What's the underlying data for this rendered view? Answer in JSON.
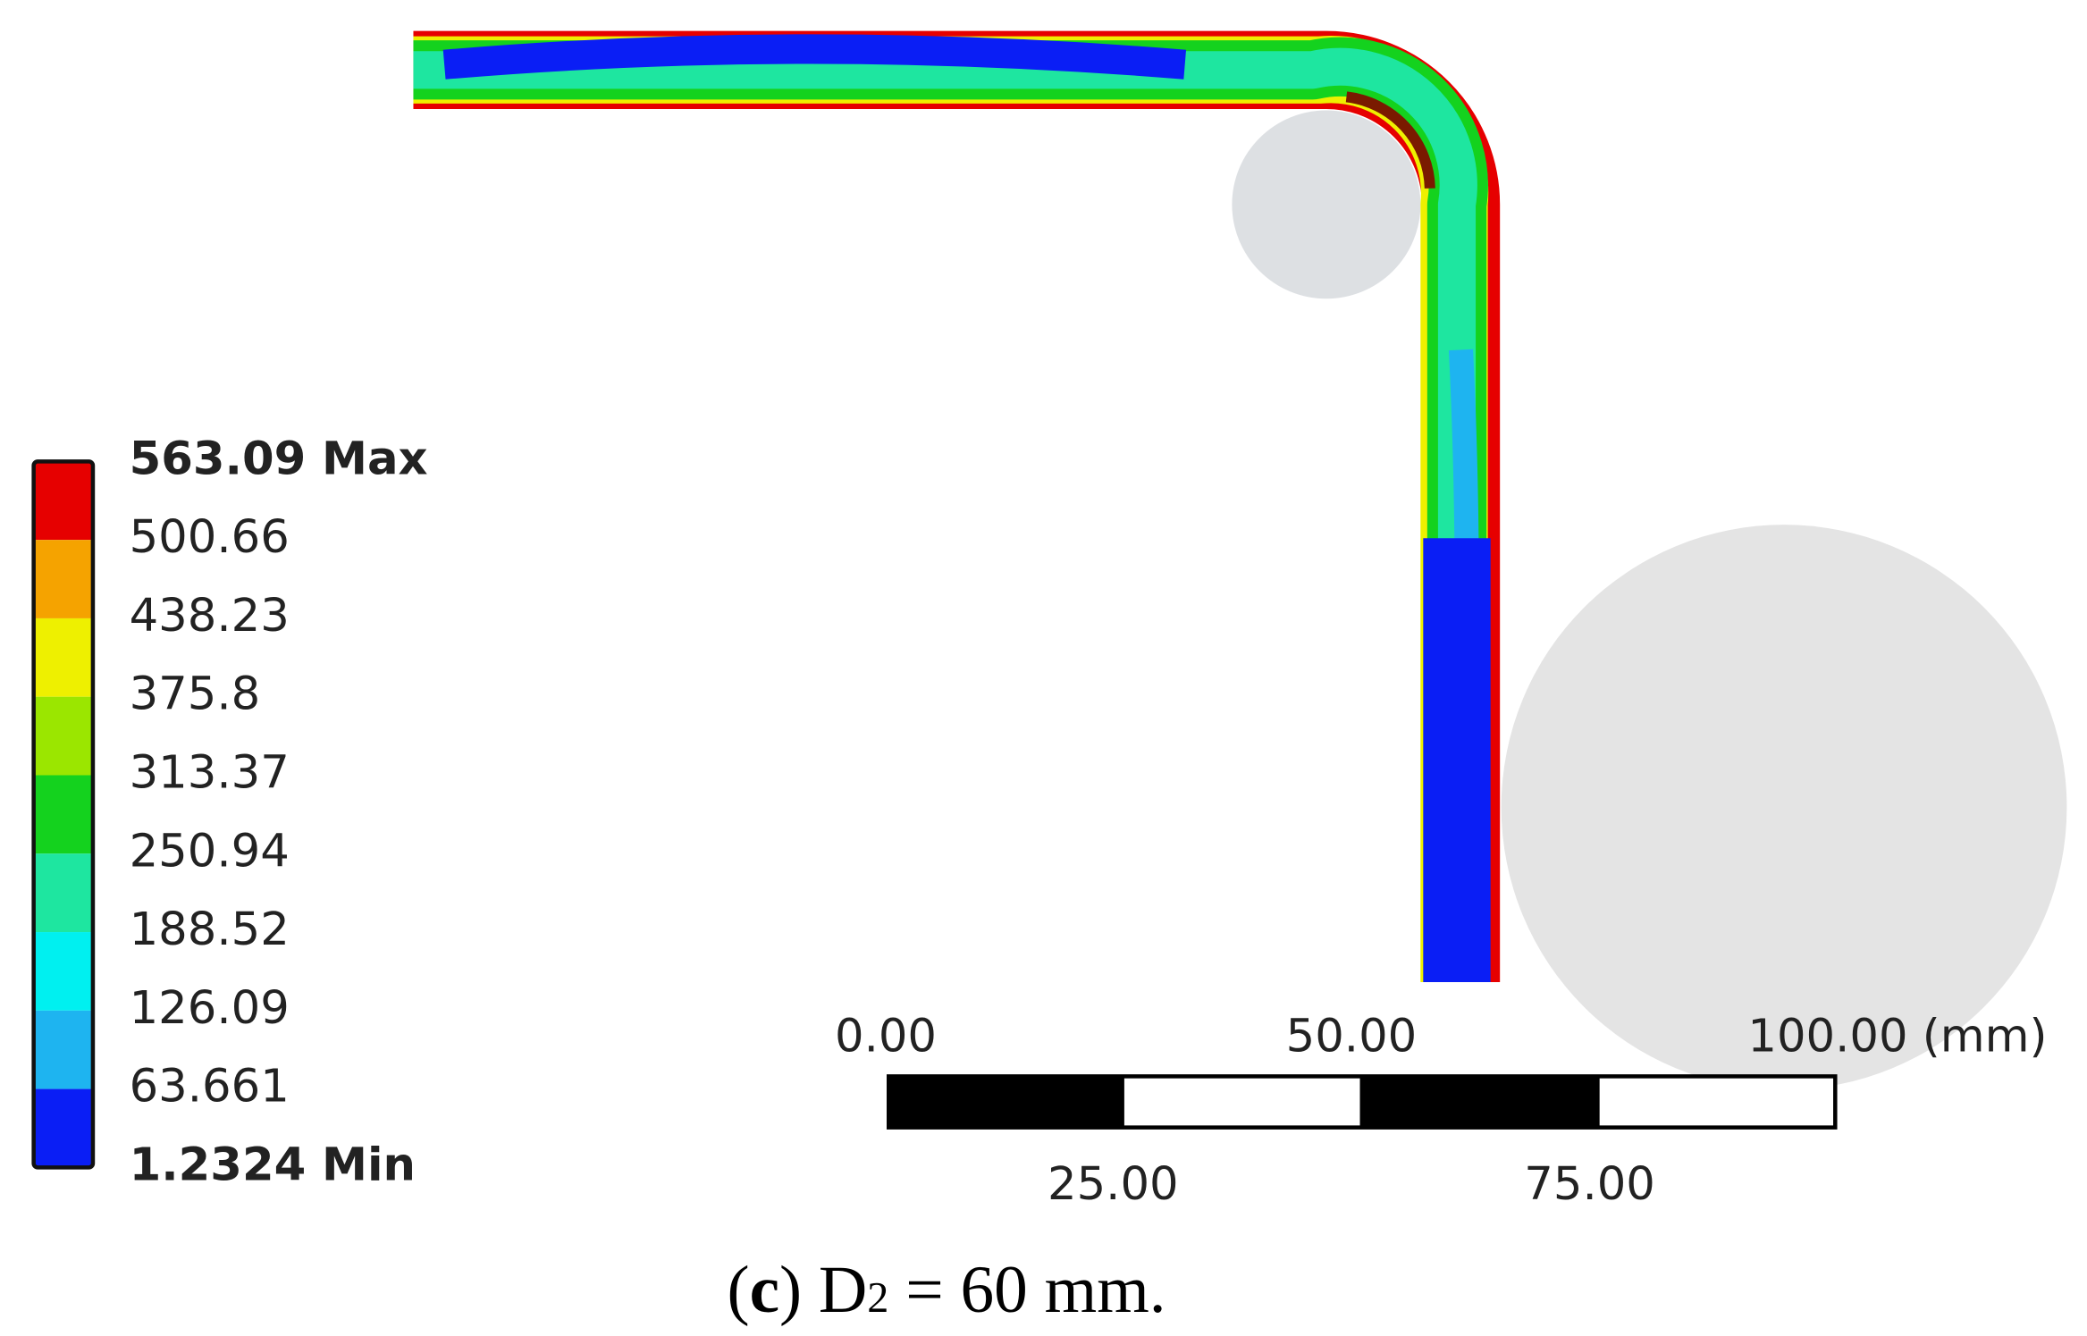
{
  "legend": {
    "labels": [
      "563.09 Max",
      "500.66",
      "438.23",
      "375.8",
      "313.37",
      "250.94",
      "188.52",
      "126.09",
      "63.661",
      "1.2324 Min"
    ],
    "colors": [
      "#e60000",
      "#f5a300",
      "#eef000",
      "#9be600",
      "#14d21e",
      "#1ee6a0",
      "#00f0f0",
      "#1eb4f0",
      "#0a1ef5"
    ]
  },
  "scale_bar": {
    "top_labels": [
      "0.00",
      "50.00",
      "100.00 (mm)"
    ],
    "bottom_labels": [
      "25.00",
      "75.00"
    ]
  },
  "caption": {
    "open": "(",
    "letter": "c",
    "close": ") D",
    "subscript": "2",
    "rest": " = 60 mm."
  }
}
